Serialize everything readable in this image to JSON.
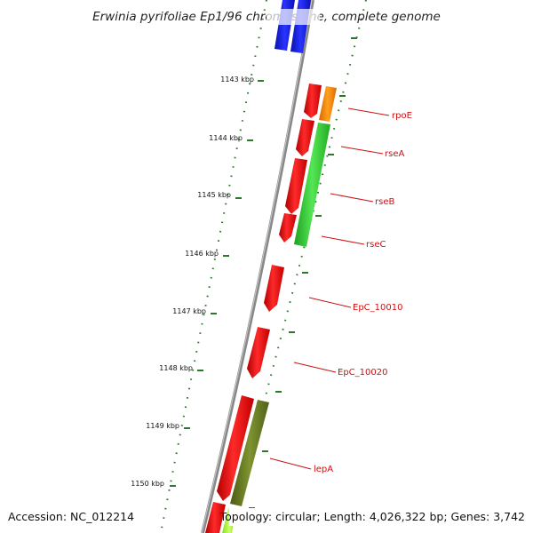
{
  "title": "Erwinia pyrifoliae Ep1/96 chromosome, complete genome",
  "accession": "Accession: NC_012214",
  "topology": "Topology: circular; Length: 4,026,322 bp; Genes: 3,742",
  "colors": {
    "forward_gene": "#ee1111",
    "blue_gene": "#1a22dd",
    "orange_gene": "#ff8800",
    "green_gene": "#33cc33",
    "olive_gene": "#667a22",
    "lime_gene": "#aaff44",
    "tick_green": "#2a7a2a",
    "backbone": "#888888",
    "label_red": "#cc1111"
  },
  "ticks": [
    {
      "kbp": 1143,
      "label": "1143 kbp"
    },
    {
      "kbp": 1144,
      "label": "1144 kbp"
    },
    {
      "kbp": 1145,
      "label": "1145 kbp"
    },
    {
      "kbp": 1146,
      "label": "1146 kbp"
    },
    {
      "kbp": 1147,
      "label": "1147 kbp"
    },
    {
      "kbp": 1148,
      "label": "1148 kbp"
    },
    {
      "kbp": 1149,
      "label": "1149 kbp"
    },
    {
      "kbp": 1150,
      "label": "1150 kbp"
    }
  ],
  "genes": [
    {
      "name": "rpoE",
      "label": "rpoE"
    },
    {
      "name": "rseA",
      "label": "rseA"
    },
    {
      "name": "rseB",
      "label": "rseB"
    },
    {
      "name": "rseC",
      "label": "rseC"
    },
    {
      "name": "EpC_10010",
      "label": "EpC_10010"
    },
    {
      "name": "EpC_10020",
      "label": "EpC_10020"
    },
    {
      "name": "lepA",
      "label": "lepA"
    }
  ]
}
